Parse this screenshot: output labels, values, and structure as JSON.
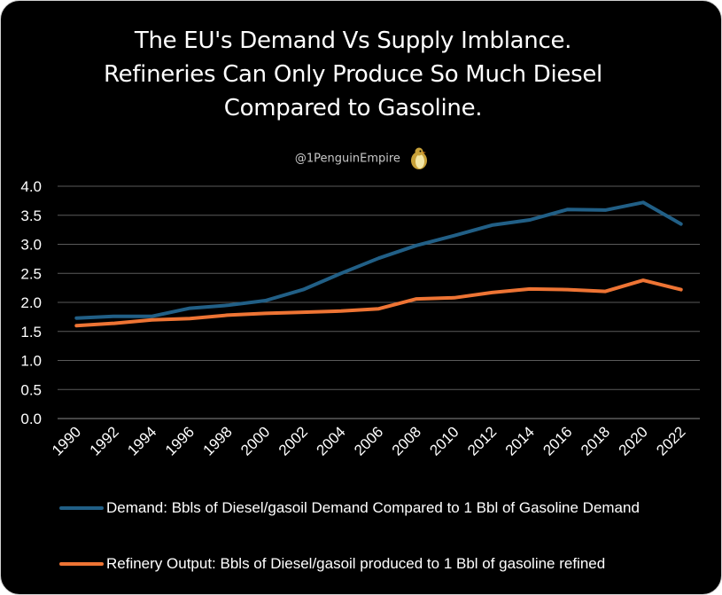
{
  "chart_data": {
    "type": "line",
    "title_lines": [
      "The EU's Demand Vs Supply Imblance.",
      "Refineries Can Only Produce So Much Diesel",
      "Compared to Gasoline."
    ],
    "watermark": "@1PenguinEmpire",
    "x": [
      1990,
      1992,
      1994,
      1996,
      1998,
      2000,
      2002,
      2004,
      2006,
      2008,
      2010,
      2012,
      2014,
      2016,
      2018,
      2020,
      2022
    ],
    "x_tick_labels": [
      "1990",
      "1992",
      "1994",
      "1996",
      "1998",
      "2000",
      "2002",
      "2004",
      "2006",
      "2008",
      "2010",
      "2012",
      "2014",
      "2016",
      "2018",
      "2020",
      "2022"
    ],
    "y_tick_labels": [
      "4.0",
      "3.5",
      "3.0",
      "2.5",
      "2.0",
      "1.5",
      "1.0",
      "0.5",
      "0.0"
    ],
    "ylim": [
      0,
      4
    ],
    "grid": true,
    "legend_position": "bottom",
    "series": [
      {
        "name": "Demand: Bbls of Diesel/gasoil Demand Compared to 1 Bbl of Gasoline Demand",
        "color": "#215f86",
        "values": [
          1.73,
          1.76,
          1.76,
          1.9,
          1.95,
          2.03,
          2.22,
          2.5,
          2.76,
          2.98,
          3.15,
          3.33,
          3.42,
          3.6,
          3.59,
          3.72,
          3.35
        ]
      },
      {
        "name": "Refinery Output: Bbls of Diesel/gasoil produced to 1 Bbl of gasoline refined",
        "color": "#ee7434",
        "values": [
          1.6,
          1.64,
          1.7,
          1.72,
          1.78,
          1.81,
          1.83,
          1.85,
          1.89,
          2.06,
          2.08,
          2.17,
          2.23,
          2.22,
          2.19,
          2.38,
          2.22
        ]
      }
    ]
  }
}
